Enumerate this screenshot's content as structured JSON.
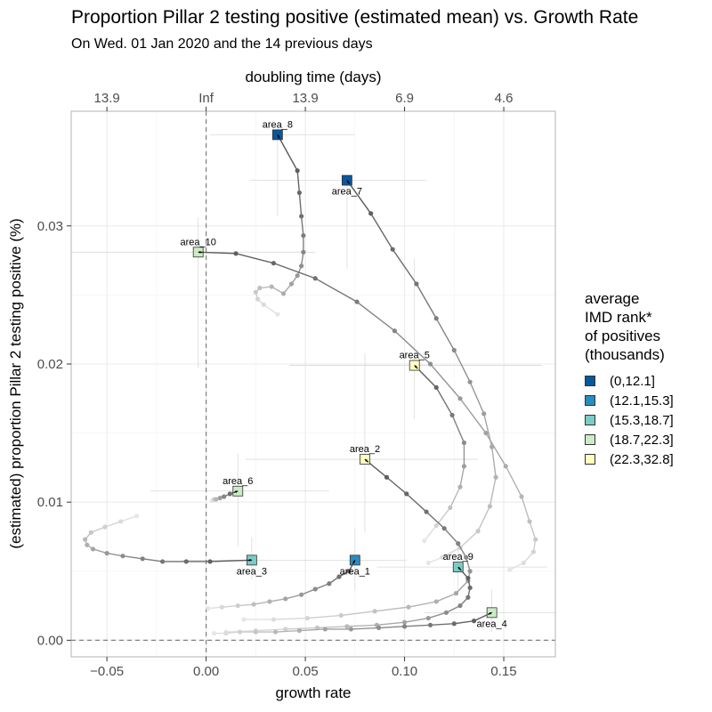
{
  "title": "Proportion Pillar 2 testing positive (estimated mean) vs. Growth Rate",
  "subtitle": "On Wed. 01 Jan 2020 and the 14 previous days",
  "chart_data": {
    "type": "scatter",
    "xlabel": "growth rate",
    "ylabel": "(estimated) proportion Pillar 2 testing positive (%)",
    "top_axis_label": "doubling time (days)",
    "xlim": [
      -0.068,
      0.176
    ],
    "ylim": [
      -0.0012,
      0.0383
    ],
    "x_ticks": [
      -0.05,
      0.0,
      0.05,
      0.1,
      0.15
    ],
    "x_tick_labels": [
      "−0.05",
      "0.00",
      "0.05",
      "0.10",
      "0.15"
    ],
    "y_ticks": [
      0.0,
      0.01,
      0.02,
      0.03
    ],
    "y_tick_labels": [
      "0.00",
      "0.01",
      "0.02",
      "0.03"
    ],
    "top_ticks": [
      -0.05,
      0.0,
      0.05,
      0.1,
      0.15
    ],
    "top_tick_labels": [
      "13.9",
      "Inf",
      "13.9",
      "6.9",
      "4.6"
    ],
    "reference_lines": {
      "x": 0,
      "y": 0
    },
    "grid": true,
    "legend": {
      "title": "average\nIMD rank*\nof positives\n(thousands)",
      "placement": "right",
      "entries": [
        {
          "label": "(0,12.1]",
          "color": "#08589e"
        },
        {
          "label": "(12.1,15.3]",
          "color": "#2b8cbe"
        },
        {
          "label": "(15.3,18.7]",
          "color": "#7bccc4"
        },
        {
          "label": "(18.7,22.3]",
          "color": "#ccebc5"
        },
        {
          "label": "(22.3,32.8]",
          "color": "#ffffbf"
        }
      ]
    },
    "series": [
      {
        "name": "area_8",
        "color": "#08589e",
        "label_pos": "above",
        "ci": {
          "x": [
            0.002,
            0.075
          ],
          "y": [
            0.0307,
            0.0372
          ]
        },
        "x": [
          0.036,
          0.046,
          0.047,
          0.048,
          0.049,
          0.049,
          0.048,
          0.046,
          0.043,
          0.039,
          0.033,
          0.027,
          0.025,
          0.026,
          0.029,
          0.036
        ],
        "y": [
          0.0366,
          0.034,
          0.0324,
          0.0307,
          0.0293,
          0.0281,
          0.0271,
          0.0264,
          0.0258,
          0.0251,
          0.0256,
          0.0255,
          0.0252,
          0.0247,
          0.0243,
          0.0236
        ]
      },
      {
        "name": "area_7",
        "color": "#08589e",
        "label_pos": "below",
        "ci": {
          "x": [
            0.022,
            0.111
          ],
          "y": [
            0.0269,
            0.0337
          ]
        },
        "x": [
          0.071,
          0.083,
          0.094,
          0.106,
          0.116,
          0.125,
          0.133,
          0.14,
          0.144,
          0.146,
          0.143,
          0.137,
          0.128,
          0.119,
          0.112
        ],
        "y": [
          0.0333,
          0.0309,
          0.0283,
          0.0258,
          0.0233,
          0.021,
          0.0187,
          0.0164,
          0.014,
          0.0118,
          0.0097,
          0.0079,
          0.0067,
          0.006,
          0.0056
        ]
      },
      {
        "name": "area_10",
        "color": "#ccebc5",
        "label_pos": "above",
        "ci": {
          "x": [
            -0.068,
            0.055
          ],
          "y": [
            0.0197,
            0.0306
          ]
        },
        "x": [
          -0.004,
          0.015,
          0.034,
          0.055,
          0.076,
          0.095,
          0.113,
          0.128,
          0.141,
          0.151,
          0.159,
          0.163,
          0.166,
          0.165,
          0.16,
          0.153
        ],
        "y": [
          0.0281,
          0.028,
          0.0273,
          0.0262,
          0.0245,
          0.0224,
          0.02,
          0.0175,
          0.015,
          0.0126,
          0.0104,
          0.0086,
          0.0073,
          0.0064,
          0.0056,
          0.0051
        ]
      },
      {
        "name": "area_5",
        "color": "#ffffbf",
        "label_pos": "above",
        "ci": {
          "x": [
            0.042,
            0.169
          ],
          "y": [
            0.016,
            0.0276
          ]
        },
        "x": [
          0.105,
          0.116,
          0.124,
          0.13,
          0.13,
          0.128,
          0.123,
          0.116,
          0.11
        ],
        "y": [
          0.0199,
          0.0183,
          0.0163,
          0.0143,
          0.0126,
          0.0111,
          0.0096,
          0.0083,
          0.0072
        ]
      },
      {
        "name": "area_2",
        "color": "#ffffbf",
        "label_pos": "above",
        "ci": {
          "x": [
            0.02,
            0.137
          ],
          "y": [
            0.0078,
            0.0208
          ]
        },
        "x": [
          0.08,
          0.091,
          0.101,
          0.111,
          0.12,
          0.127,
          0.131,
          0.133,
          0.132,
          0.126,
          0.116,
          0.102,
          0.085,
          0.068,
          0.051,
          0.034,
          0.019
        ],
        "y": [
          0.0131,
          0.0118,
          0.0106,
          0.0093,
          0.0081,
          0.007,
          0.006,
          0.005,
          0.0043,
          0.0034,
          0.0028,
          0.0024,
          0.0021,
          0.0018,
          0.0016,
          0.0015,
          0.0015
        ]
      },
      {
        "name": "area_6",
        "color": "#ccebc5",
        "label_pos": "above",
        "ci": {
          "x": [
            -0.028,
            0.062
          ],
          "y": [
            0.0068,
            0.0135
          ]
        },
        "x": [
          0.016,
          0.012,
          0.009,
          0.007,
          0.005,
          0.004,
          0.003
        ],
        "y": [
          0.0108,
          0.0106,
          0.0104,
          0.0103,
          0.0102,
          0.0102,
          0.0101
        ]
      },
      {
        "name": "area_3",
        "color": "#7bccc4",
        "label_pos": "below",
        "ci": {
          "x": [
            -0.012,
            0.05
          ],
          "y": [
            0.0044,
            0.0075
          ]
        },
        "x": [
          0.023,
          0.002,
          -0.01,
          -0.022,
          -0.032,
          -0.042,
          -0.05,
          -0.057,
          -0.06,
          -0.061,
          -0.058,
          -0.051,
          -0.043,
          -0.035
        ],
        "y": [
          0.0058,
          0.0057,
          0.0057,
          0.0057,
          0.0059,
          0.0061,
          0.0063,
          0.0066,
          0.0069,
          0.0073,
          0.0078,
          0.0082,
          0.0086,
          0.009
        ]
      },
      {
        "name": "area_1",
        "color": "#2b8cbe",
        "label_pos": "below",
        "ci": {
          "x": [
            0.048,
            0.101
          ],
          "y": [
            0.0036,
            0.0081
          ]
        },
        "x": [
          0.075,
          0.072,
          0.067,
          0.062,
          0.055,
          0.048,
          0.04,
          0.032,
          0.024,
          0.016,
          0.008,
          0.001
        ],
        "y": [
          0.0058,
          0.005,
          0.0046,
          0.0041,
          0.0037,
          0.0033,
          0.003,
          0.0028,
          0.0026,
          0.0025,
          0.0024,
          0.0023
        ]
      },
      {
        "name": "area_9",
        "color": "#7bccc4",
        "label_pos": "above",
        "ci": {
          "x": [
            0.086,
            0.172
          ],
          "y": [
            0.0035,
            0.0072
          ]
        },
        "x": [
          0.127,
          0.132,
          0.133,
          0.132,
          0.128,
          0.121,
          0.112,
          0.1,
          0.086,
          0.071,
          0.056,
          0.04,
          0.025,
          0.01
        ],
        "y": [
          0.0053,
          0.0045,
          0.0038,
          0.0031,
          0.0025,
          0.002,
          0.0016,
          0.0013,
          0.0011,
          0.001,
          0.0009,
          0.0008,
          0.0007,
          0.0006
        ]
      },
      {
        "name": "area_4",
        "color": "#ccebc5",
        "label_pos": "below",
        "ci": {
          "x": [
            0.11,
            0.176
          ],
          "y": [
            0.0006,
            0.0037
          ]
        },
        "x": [
          0.144,
          0.135,
          0.125,
          0.113,
          0.1,
          0.087,
          0.073,
          0.06,
          0.047,
          0.035,
          0.025,
          0.017,
          0.01,
          0.004
        ],
        "y": [
          0.002,
          0.0014,
          0.0012,
          0.0011,
          0.001,
          0.0009,
          0.0008,
          0.0008,
          0.0007,
          0.0006,
          0.0006,
          0.0006,
          0.0005,
          0.0005
        ]
      }
    ]
  }
}
